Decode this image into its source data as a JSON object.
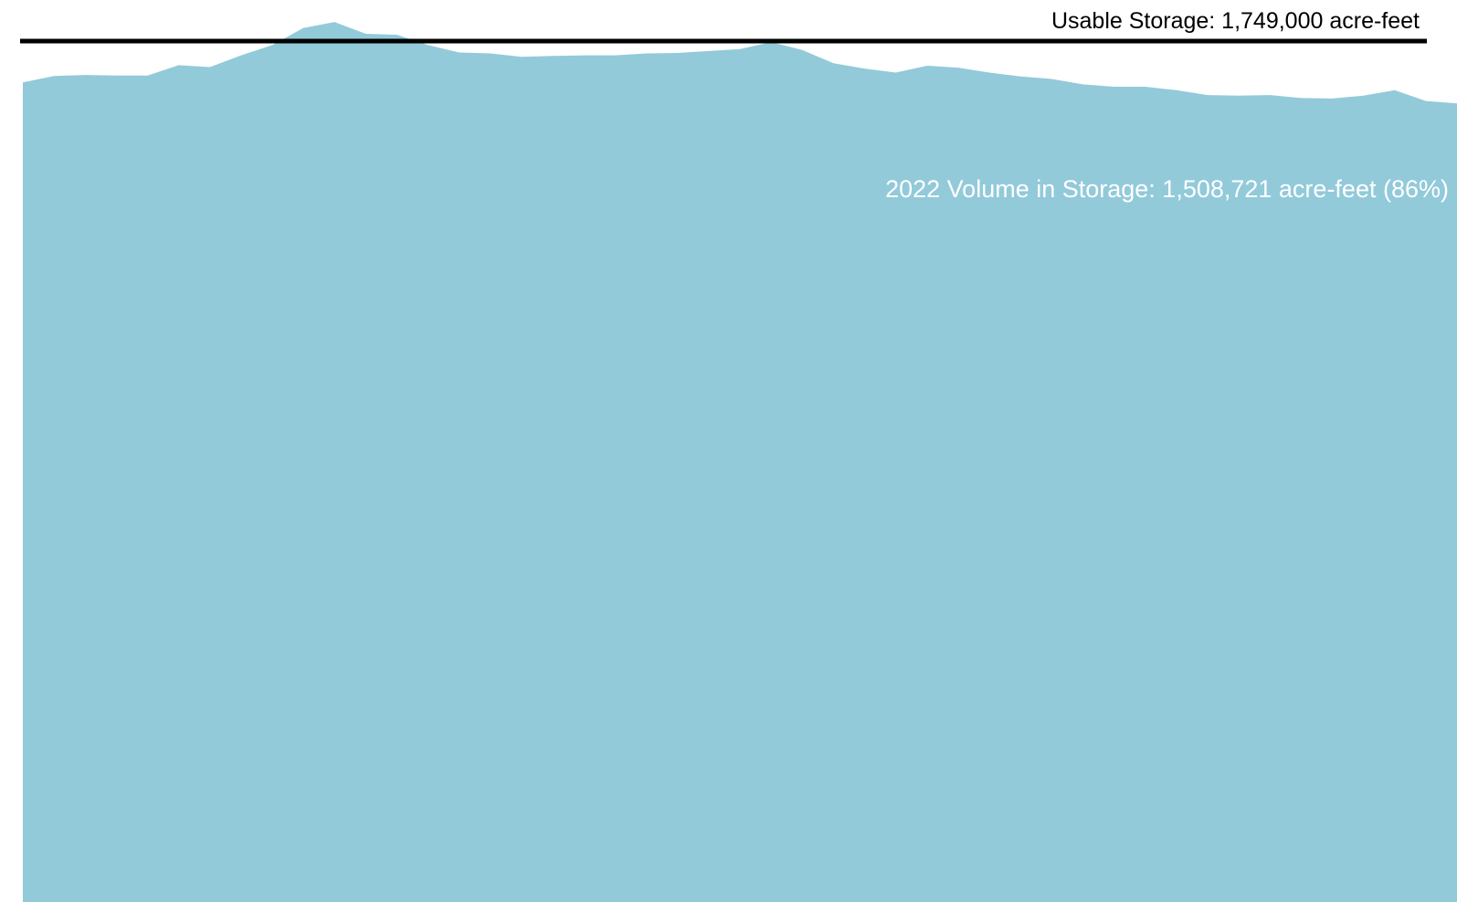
{
  "colors": {
    "area_fill": "#92CADA",
    "capacity_line": "#000000",
    "volume_label": "#FFFFFF"
  },
  "annotations": {
    "capacity_label": "Usable Storage:  1,749,000 acre-feet",
    "volume_label": "2022 Volume in Storage: 1,508,721 acre-feet (86%)"
  },
  "chart_data": {
    "type": "area",
    "title": "",
    "xlabel": "",
    "ylabel": "",
    "ylim": [
      0,
      1840000
    ],
    "capacity": 1749000,
    "series": [
      {
        "values": [
          1672000,
          1685000,
          1687000,
          1686000,
          1686000,
          1707000,
          1703000,
          1727000,
          1748000,
          1783000,
          1795000,
          1771000,
          1769000,
          1748000,
          1733000,
          1731000,
          1724000,
          1726000,
          1727000,
          1727000,
          1731000,
          1732000,
          1736000,
          1740000,
          1754000,
          1738000,
          1711000,
          1700000,
          1692000,
          1706000,
          1702000,
          1692000,
          1684000,
          1679000,
          1668000,
          1663000,
          1663000,
          1656000,
          1646000,
          1645000,
          1646000,
          1640000,
          1639000,
          1645000,
          1656000,
          1634000,
          1629000
        ]
      }
    ]
  }
}
